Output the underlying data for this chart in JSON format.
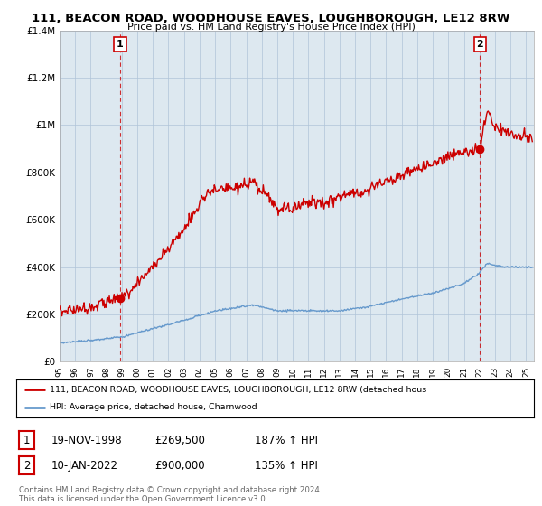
{
  "title1": "111, BEACON ROAD, WOODHOUSE EAVES, LOUGHBOROUGH, LE12 8RW",
  "title2": "Price paid vs. HM Land Registry's House Price Index (HPI)",
  "xlim_start": 1995.0,
  "xlim_end": 2025.5,
  "ylim_min": 0,
  "ylim_max": 1400000,
  "yticks": [
    0,
    200000,
    400000,
    600000,
    800000,
    1000000,
    1200000,
    1400000
  ],
  "ytick_labels": [
    "£0",
    "£200K",
    "£400K",
    "£600K",
    "£800K",
    "£1M",
    "£1.2M",
    "£1.4M"
  ],
  "sale1_year": 1998.89,
  "sale1_price": 269500,
  "sale2_year": 2022.03,
  "sale2_price": 900000,
  "red_color": "#cc0000",
  "blue_color": "#6699cc",
  "chart_bg": "#dde8f0",
  "legend_label_red": "111, BEACON ROAD, WOODHOUSE EAVES, LOUGHBOROUGH, LE12 8RW (detached hous",
  "legend_label_blue": "HPI: Average price, detached house, Charnwood",
  "table_rows": [
    {
      "num": "1",
      "date": "19-NOV-1998",
      "price": "£269,500",
      "pct": "187% ↑ HPI"
    },
    {
      "num": "2",
      "date": "10-JAN-2022",
      "price": "£900,000",
      "pct": "135% ↑ HPI"
    }
  ],
  "footnote": "Contains HM Land Registry data © Crown copyright and database right 2024.\nThis data is licensed under the Open Government Licence v3.0.",
  "background_color": "#ffffff",
  "grid_color": "#b0c4d8",
  "red_key_t": [
    1995.0,
    1996.5,
    1998.89,
    2000.0,
    2001.5,
    2003.0,
    2004.5,
    2006.0,
    2007.5,
    2008.5,
    2009.0,
    2010.0,
    2011.0,
    2012.0,
    2013.0,
    2014.5,
    2016.0,
    2017.5,
    2019.0,
    2020.5,
    2022.03,
    2022.5,
    2023.0,
    2024.0,
    2025.4
  ],
  "red_key_v": [
    215000,
    225000,
    269500,
    330000,
    440000,
    560000,
    720000,
    730000,
    750000,
    690000,
    640000,
    650000,
    680000,
    670000,
    700000,
    720000,
    760000,
    800000,
    840000,
    880000,
    900000,
    1060000,
    1000000,
    960000,
    940000
  ],
  "hpi_key_t": [
    1995.0,
    1997.0,
    1999.0,
    2001.0,
    2003.0,
    2005.0,
    2007.5,
    2009.0,
    2011.0,
    2013.0,
    2015.0,
    2017.0,
    2019.0,
    2021.0,
    2022.0,
    2022.5,
    2023.5,
    2024.5,
    2025.4
  ],
  "hpi_key_v": [
    80000,
    90000,
    105000,
    140000,
    175000,
    215000,
    240000,
    215000,
    215000,
    215000,
    235000,
    265000,
    290000,
    330000,
    375000,
    415000,
    400000,
    400000,
    400000
  ]
}
